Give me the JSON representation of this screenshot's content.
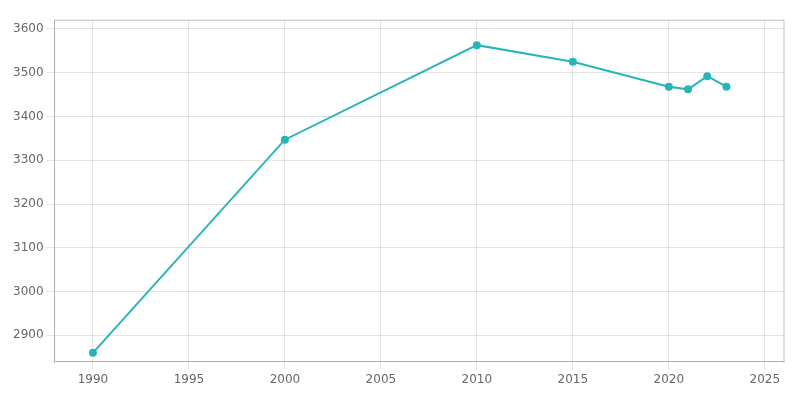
{
  "chart_data": {
    "type": "line",
    "x": [
      1990,
      2000,
      2010,
      2015,
      2020,
      2021,
      2022,
      2023
    ],
    "values": [
      2860,
      3347,
      3563,
      3525,
      3468,
      3462,
      3492,
      3468
    ],
    "color": "#2ab5b5",
    "marker": "circle",
    "xlim": [
      1988,
      2026
    ],
    "ylim": [
      2840,
      3620
    ],
    "xticks": [
      1990,
      1995,
      2000,
      2005,
      2010,
      2015,
      2020,
      2025
    ],
    "yticks": [
      2900,
      3000,
      3100,
      3200,
      3300,
      3400,
      3500,
      3600
    ],
    "grid": true
  }
}
